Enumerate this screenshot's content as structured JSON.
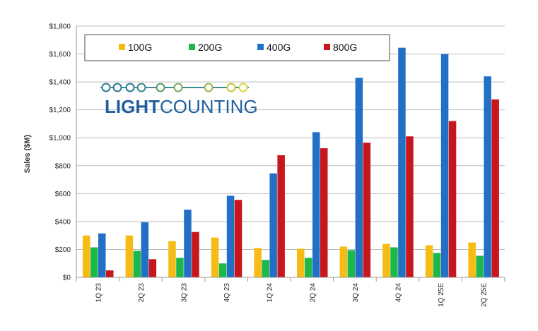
{
  "chart_data": {
    "type": "bar",
    "title": "",
    "xlabel": "",
    "ylabel": "Sales ($M)",
    "ylim": [
      0,
      1800
    ],
    "yticks": [
      0,
      200,
      400,
      600,
      800,
      1000,
      1200,
      1400,
      1600,
      1800
    ],
    "ytick_labels": [
      "$0",
      "$200",
      "$400",
      "$600",
      "$800",
      "$1,000",
      "$1,200",
      "$1,400",
      "$1,600",
      "$1,800"
    ],
    "grid": true,
    "legend_position": "top-left",
    "categories": [
      "1Q 23",
      "2Q 23",
      "3Q 23",
      "4Q 23",
      "1Q 24",
      "2Q 24",
      "3Q 24",
      "4Q 24",
      "1Q 25E",
      "2Q 25E"
    ],
    "series": [
      {
        "name": "100G",
        "color": "#f6bb14",
        "values": [
          300,
          300,
          260,
          285,
          210,
          205,
          220,
          240,
          230,
          250
        ]
      },
      {
        "name": "200G",
        "color": "#1db84a",
        "values": [
          215,
          190,
          140,
          100,
          125,
          140,
          195,
          215,
          175,
          155
        ]
      },
      {
        "name": "400G",
        "color": "#2170c6",
        "values": [
          315,
          395,
          485,
          585,
          745,
          1040,
          1430,
          1645,
          1600,
          1440
        ]
      },
      {
        "name": "800G",
        "color": "#c8161d",
        "values": [
          50,
          130,
          325,
          555,
          875,
          925,
          965,
          1010,
          1120,
          1275
        ]
      }
    ]
  },
  "logo": {
    "text_light": "LIGHT",
    "text_counting": "COUNTING",
    "text_color": "#1f5f9e"
  }
}
